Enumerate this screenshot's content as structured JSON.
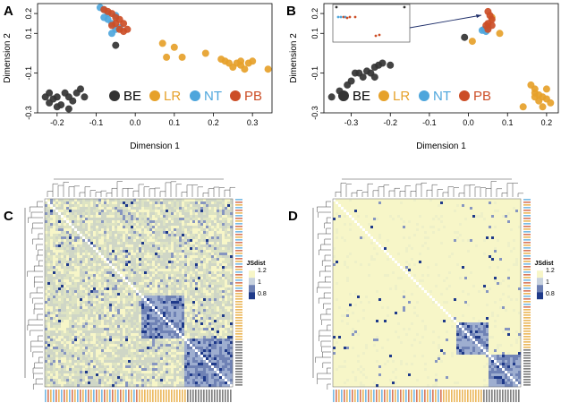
{
  "colors": {
    "BE": "#333333",
    "LR": "#e6a12a",
    "NT": "#4ea6dc",
    "PB": "#cc4e27",
    "heat_low": "#f7f6c8",
    "heat_mid": "#b8c4d8",
    "heat_high": "#1f3a8a"
  },
  "panels": {
    "A": "A",
    "B": "B",
    "C": "C",
    "D": "D"
  },
  "heatmap_legend_title": "JSdist",
  "heatmap_legend_ticks": [
    "1.2",
    "1",
    "0.8"
  ],
  "chart_data": [
    {
      "type": "scatter",
      "panel": "A",
      "xlabel": "Dimension 1",
      "ylabel": "Dimension 2",
      "xlim": [
        -0.25,
        0.35
      ],
      "ylim": [
        -0.3,
        0.25
      ],
      "xticks": [
        -0.2,
        -0.1,
        0.0,
        0.1,
        0.2,
        0.3
      ],
      "xtick_labels": [
        "-0.2",
        "-0.1",
        "0.0",
        "0.1",
        "0.2",
        "0.3"
      ],
      "yticks": [
        -0.3,
        -0.1,
        0.1,
        0.2
      ],
      "ytick_labels": [
        "-0.3",
        "-0.1",
        "0.1",
        "0.2"
      ],
      "legend": [
        "BE",
        "LR",
        "NT",
        "PB"
      ],
      "series": [
        {
          "name": "BE",
          "points": [
            [
              -0.23,
              -0.22
            ],
            [
              -0.22,
              -0.25
            ],
            [
              -0.21,
              -0.23
            ],
            [
              -0.2,
              -0.22
            ],
            [
              -0.19,
              -0.26
            ],
            [
              -0.18,
              -0.2
            ],
            [
              -0.17,
              -0.22
            ],
            [
              -0.16,
              -0.24
            ],
            [
              -0.15,
              -0.2
            ],
            [
              -0.14,
              -0.18
            ],
            [
              -0.22,
              -0.2
            ],
            [
              -0.2,
              -0.27
            ],
            [
              -0.17,
              -0.28
            ],
            [
              -0.13,
              -0.22
            ],
            [
              -0.05,
              0.04
            ]
          ]
        },
        {
          "name": "LR",
          "points": [
            [
              0.07,
              0.05
            ],
            [
              0.08,
              -0.02
            ],
            [
              0.1,
              0.03
            ],
            [
              0.12,
              -0.02
            ],
            [
              0.18,
              0.0
            ],
            [
              0.22,
              -0.03
            ],
            [
              0.23,
              -0.04
            ],
            [
              0.24,
              -0.05
            ],
            [
              0.25,
              -0.07
            ],
            [
              0.26,
              -0.05
            ],
            [
              0.27,
              -0.06
            ],
            [
              0.28,
              -0.08
            ],
            [
              0.29,
              -0.05
            ],
            [
              0.3,
              -0.04
            ],
            [
              0.34,
              -0.08
            ],
            [
              0.27,
              -0.04
            ]
          ]
        },
        {
          "name": "NT",
          "points": [
            [
              -0.09,
              0.23
            ],
            [
              -0.08,
              0.22
            ],
            [
              -0.07,
              0.2
            ],
            [
              -0.07,
              0.17
            ],
            [
              -0.06,
              0.15
            ],
            [
              -0.05,
              0.12
            ],
            [
              -0.06,
              0.1
            ],
            [
              -0.04,
              0.13
            ],
            [
              -0.08,
              0.18
            ],
            [
              -0.05,
              0.19
            ]
          ]
        },
        {
          "name": "PB",
          "points": [
            [
              -0.08,
              0.22
            ],
            [
              -0.06,
              0.2
            ],
            [
              -0.05,
              0.18
            ],
            [
              -0.05,
              0.15
            ],
            [
              -0.04,
              0.12
            ],
            [
              -0.03,
              0.11
            ],
            [
              -0.03,
              0.15
            ],
            [
              -0.04,
              0.17
            ],
            [
              -0.06,
              0.14
            ],
            [
              -0.07,
              0.21
            ],
            [
              -0.02,
              0.12
            ]
          ]
        }
      ]
    },
    {
      "type": "scatter",
      "panel": "B",
      "xlabel": "Dimension 1",
      "ylabel": "Dimension 2",
      "xlim": [
        -0.37,
        0.23
      ],
      "ylim": [
        -0.3,
        0.25
      ],
      "xticks": [
        -0.3,
        -0.2,
        -0.1,
        0.0,
        0.1,
        0.2
      ],
      "xtick_labels": [
        "-0.3",
        "-0.2",
        "-0.1",
        "0.0",
        "0.1",
        "0.2"
      ],
      "yticks": [
        -0.3,
        -0.1,
        0.1,
        0.2
      ],
      "ytick_labels": [
        "-0.3",
        "-0.1",
        "0.1",
        "0.2"
      ],
      "legend": [
        "BE",
        "LR",
        "NT",
        "PB"
      ],
      "series": [
        {
          "name": "BE",
          "points": [
            [
              -0.35,
              -0.22
            ],
            [
              -0.33,
              -0.19
            ],
            [
              -0.31,
              -0.16
            ],
            [
              -0.3,
              -0.14
            ],
            [
              -0.28,
              -0.1
            ],
            [
              -0.27,
              -0.12
            ],
            [
              -0.26,
              -0.09
            ],
            [
              -0.25,
              -0.1
            ],
            [
              -0.24,
              -0.07
            ],
            [
              -0.23,
              -0.06
            ],
            [
              -0.22,
              -0.05
            ],
            [
              -0.24,
              -0.12
            ],
            [
              -0.29,
              -0.1
            ],
            [
              -0.2,
              -0.06
            ],
            [
              -0.01,
              0.08
            ]
          ]
        },
        {
          "name": "LR",
          "points": [
            [
              0.16,
              -0.16
            ],
            [
              0.17,
              -0.18
            ],
            [
              0.17,
              -0.2
            ],
            [
              0.18,
              -0.21
            ],
            [
              0.19,
              -0.22
            ],
            [
              0.2,
              -0.23
            ],
            [
              0.18,
              -0.24
            ],
            [
              0.19,
              -0.27
            ],
            [
              0.2,
              -0.18
            ],
            [
              0.17,
              -0.22
            ],
            [
              0.21,
              -0.25
            ],
            [
              0.14,
              -0.27
            ],
            [
              0.01,
              0.06
            ],
            [
              0.08,
              0.1
            ],
            [
              0.06,
              0.18
            ]
          ]
        },
        {
          "name": "NT",
          "points": [
            [
              0.04,
              0.12
            ],
            [
              0.05,
              0.13
            ],
            [
              0.045,
              0.11
            ],
            [
              0.035,
              0.115
            ]
          ]
        },
        {
          "name": "PB",
          "points": [
            [
              0.05,
              0.21
            ],
            [
              0.055,
              0.19
            ],
            [
              0.06,
              0.17
            ],
            [
              0.05,
              0.15
            ],
            [
              0.045,
              0.14
            ],
            [
              0.06,
              0.14
            ],
            [
              0.05,
              0.12
            ]
          ]
        }
      ]
    },
    {
      "type": "heatmap",
      "panel": "C",
      "description_values": "Jensen-Shannon distance matrix, scale 0.8–1.2",
      "scale": {
        "min": 0.8,
        "max": 1.2
      }
    },
    {
      "type": "heatmap",
      "panel": "D",
      "scale": {
        "min": 0.8,
        "max": 1.2
      }
    }
  ]
}
